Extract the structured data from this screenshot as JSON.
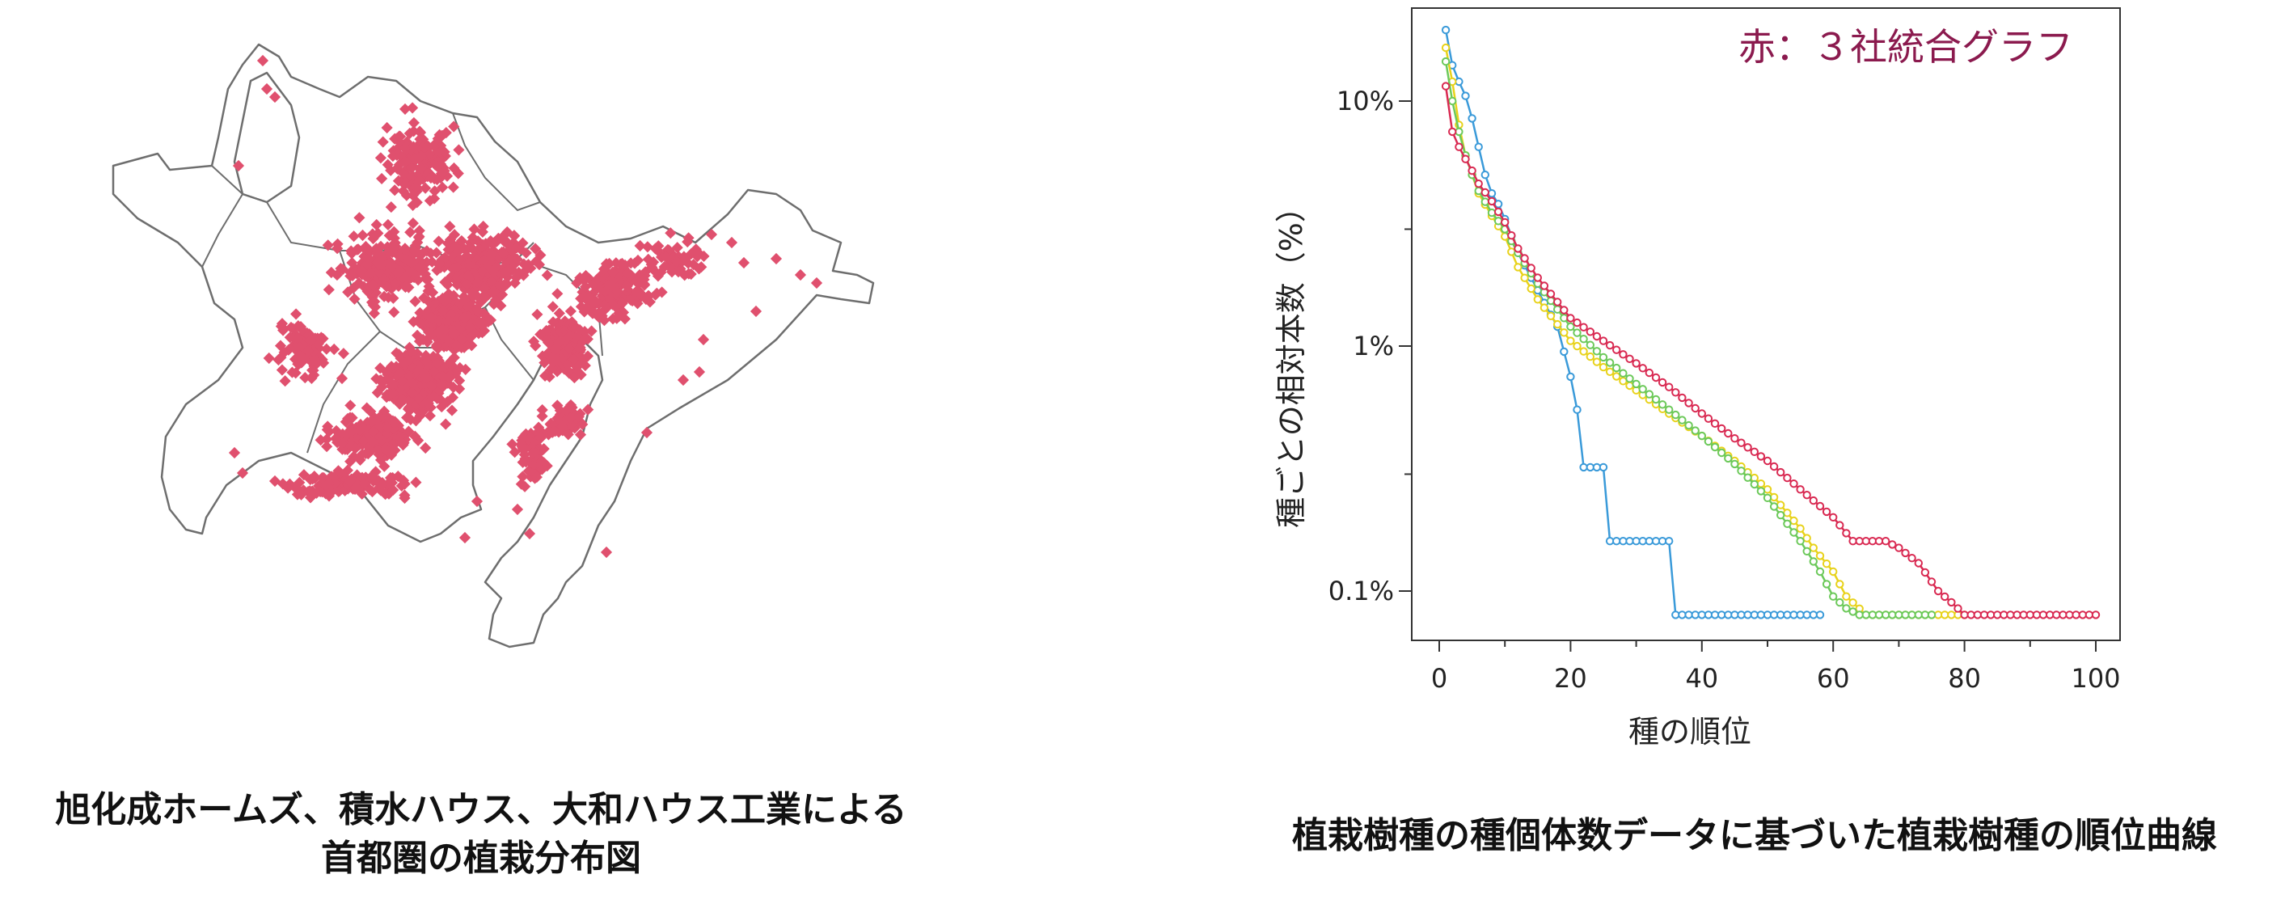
{
  "map": {
    "caption_line1": "旭化成ホームズ、積水ハウス、大和ハウス工業による",
    "caption_line2": "首都圏の植栽分布図",
    "dot_color": "#e0506e",
    "outline_color": "#6e6e6e"
  },
  "chart_caption": "植栽樹種の種個体数データに基づいた植栽樹種の順位曲線",
  "chart_data": {
    "type": "line",
    "title": "",
    "xlabel": "種の順位",
    "ylabel": "種ごとの相対本数（%）",
    "y_scale": "log",
    "xlim": [
      0,
      100
    ],
    "ylim_percent": [
      0.065,
      25
    ],
    "x_ticks": [
      0,
      20,
      40,
      60,
      80,
      100
    ],
    "x_tick_labels": [
      "0",
      "20",
      "40",
      "60",
      "80",
      "100"
    ],
    "y_ticks": [
      10,
      1,
      0.1
    ],
    "y_tick_labels": [
      "10%",
      "1%",
      "0.1%"
    ],
    "annotation": "赤：３社統合グラフ",
    "grid": false,
    "series": [
      {
        "color": "#3a9ad9",
        "points": [
          [
            1,
            19.5
          ],
          [
            2,
            14
          ],
          [
            3,
            12
          ],
          [
            4,
            10.5
          ],
          [
            5,
            8.5
          ],
          [
            6,
            6.5
          ],
          [
            7,
            5
          ],
          [
            8,
            4.2
          ],
          [
            9,
            3.8
          ],
          [
            10,
            3.3
          ],
          [
            12,
            2.4
          ],
          [
            14,
            1.9
          ],
          [
            16,
            1.5
          ],
          [
            18,
            1.2
          ],
          [
            20,
            0.75
          ],
          [
            21,
            0.55
          ],
          [
            22,
            0.32
          ],
          [
            25,
            0.32
          ],
          [
            26,
            0.16
          ],
          [
            35,
            0.16
          ],
          [
            36,
            0.08
          ],
          [
            58,
            0.08
          ]
        ]
      },
      {
        "color": "#e8d21a",
        "points": [
          [
            1,
            16.5
          ],
          [
            2,
            12
          ],
          [
            3,
            8
          ],
          [
            4,
            6
          ],
          [
            5,
            5
          ],
          [
            6,
            4.2
          ],
          [
            8,
            3.4
          ],
          [
            10,
            2.8
          ],
          [
            12,
            2.1
          ],
          [
            15,
            1.55
          ],
          [
            20,
            1.05
          ],
          [
            25,
            0.82
          ],
          [
            30,
            0.66
          ],
          [
            35,
            0.53
          ],
          [
            40,
            0.43
          ],
          [
            45,
            0.34
          ],
          [
            50,
            0.26
          ],
          [
            55,
            0.18
          ],
          [
            57,
            0.15
          ],
          [
            60,
            0.12
          ],
          [
            62,
            0.095
          ],
          [
            65,
            0.08
          ],
          [
            80,
            0.08
          ]
        ]
      },
      {
        "color": "#6cc95a",
        "points": [
          [
            1,
            14.5
          ],
          [
            2,
            10
          ],
          [
            3,
            7.5
          ],
          [
            4,
            6
          ],
          [
            5,
            5
          ],
          [
            6,
            4.3
          ],
          [
            8,
            3.5
          ],
          [
            10,
            3
          ],
          [
            12,
            2.4
          ],
          [
            15,
            1.8
          ],
          [
            20,
            1.2
          ],
          [
            25,
            0.9
          ],
          [
            30,
            0.7
          ],
          [
            35,
            0.55
          ],
          [
            40,
            0.43
          ],
          [
            45,
            0.33
          ],
          [
            50,
            0.24
          ],
          [
            55,
            0.16
          ],
          [
            58,
            0.12
          ],
          [
            60,
            0.095
          ],
          [
            62,
            0.085
          ],
          [
            64,
            0.08
          ],
          [
            75,
            0.08
          ]
        ]
      },
      {
        "color": "#d92a52",
        "points": [
          [
            1,
            11.5
          ],
          [
            2,
            7.5
          ],
          [
            3,
            6.5
          ],
          [
            4,
            5.8
          ],
          [
            5,
            5.2
          ],
          [
            6,
            4.6
          ],
          [
            8,
            3.9
          ],
          [
            10,
            3.2
          ],
          [
            12,
            2.5
          ],
          [
            15,
            1.9
          ],
          [
            20,
            1.3
          ],
          [
            25,
            1.05
          ],
          [
            30,
            0.85
          ],
          [
            35,
            0.68
          ],
          [
            40,
            0.53
          ],
          [
            45,
            0.42
          ],
          [
            50,
            0.34
          ],
          [
            55,
            0.26
          ],
          [
            60,
            0.2
          ],
          [
            63,
            0.16
          ],
          [
            68,
            0.16
          ],
          [
            70,
            0.15
          ],
          [
            73,
            0.13
          ],
          [
            76,
            0.1
          ],
          [
            78,
            0.09
          ],
          [
            80,
            0.08
          ],
          [
            100,
            0.08
          ]
        ]
      }
    ]
  }
}
